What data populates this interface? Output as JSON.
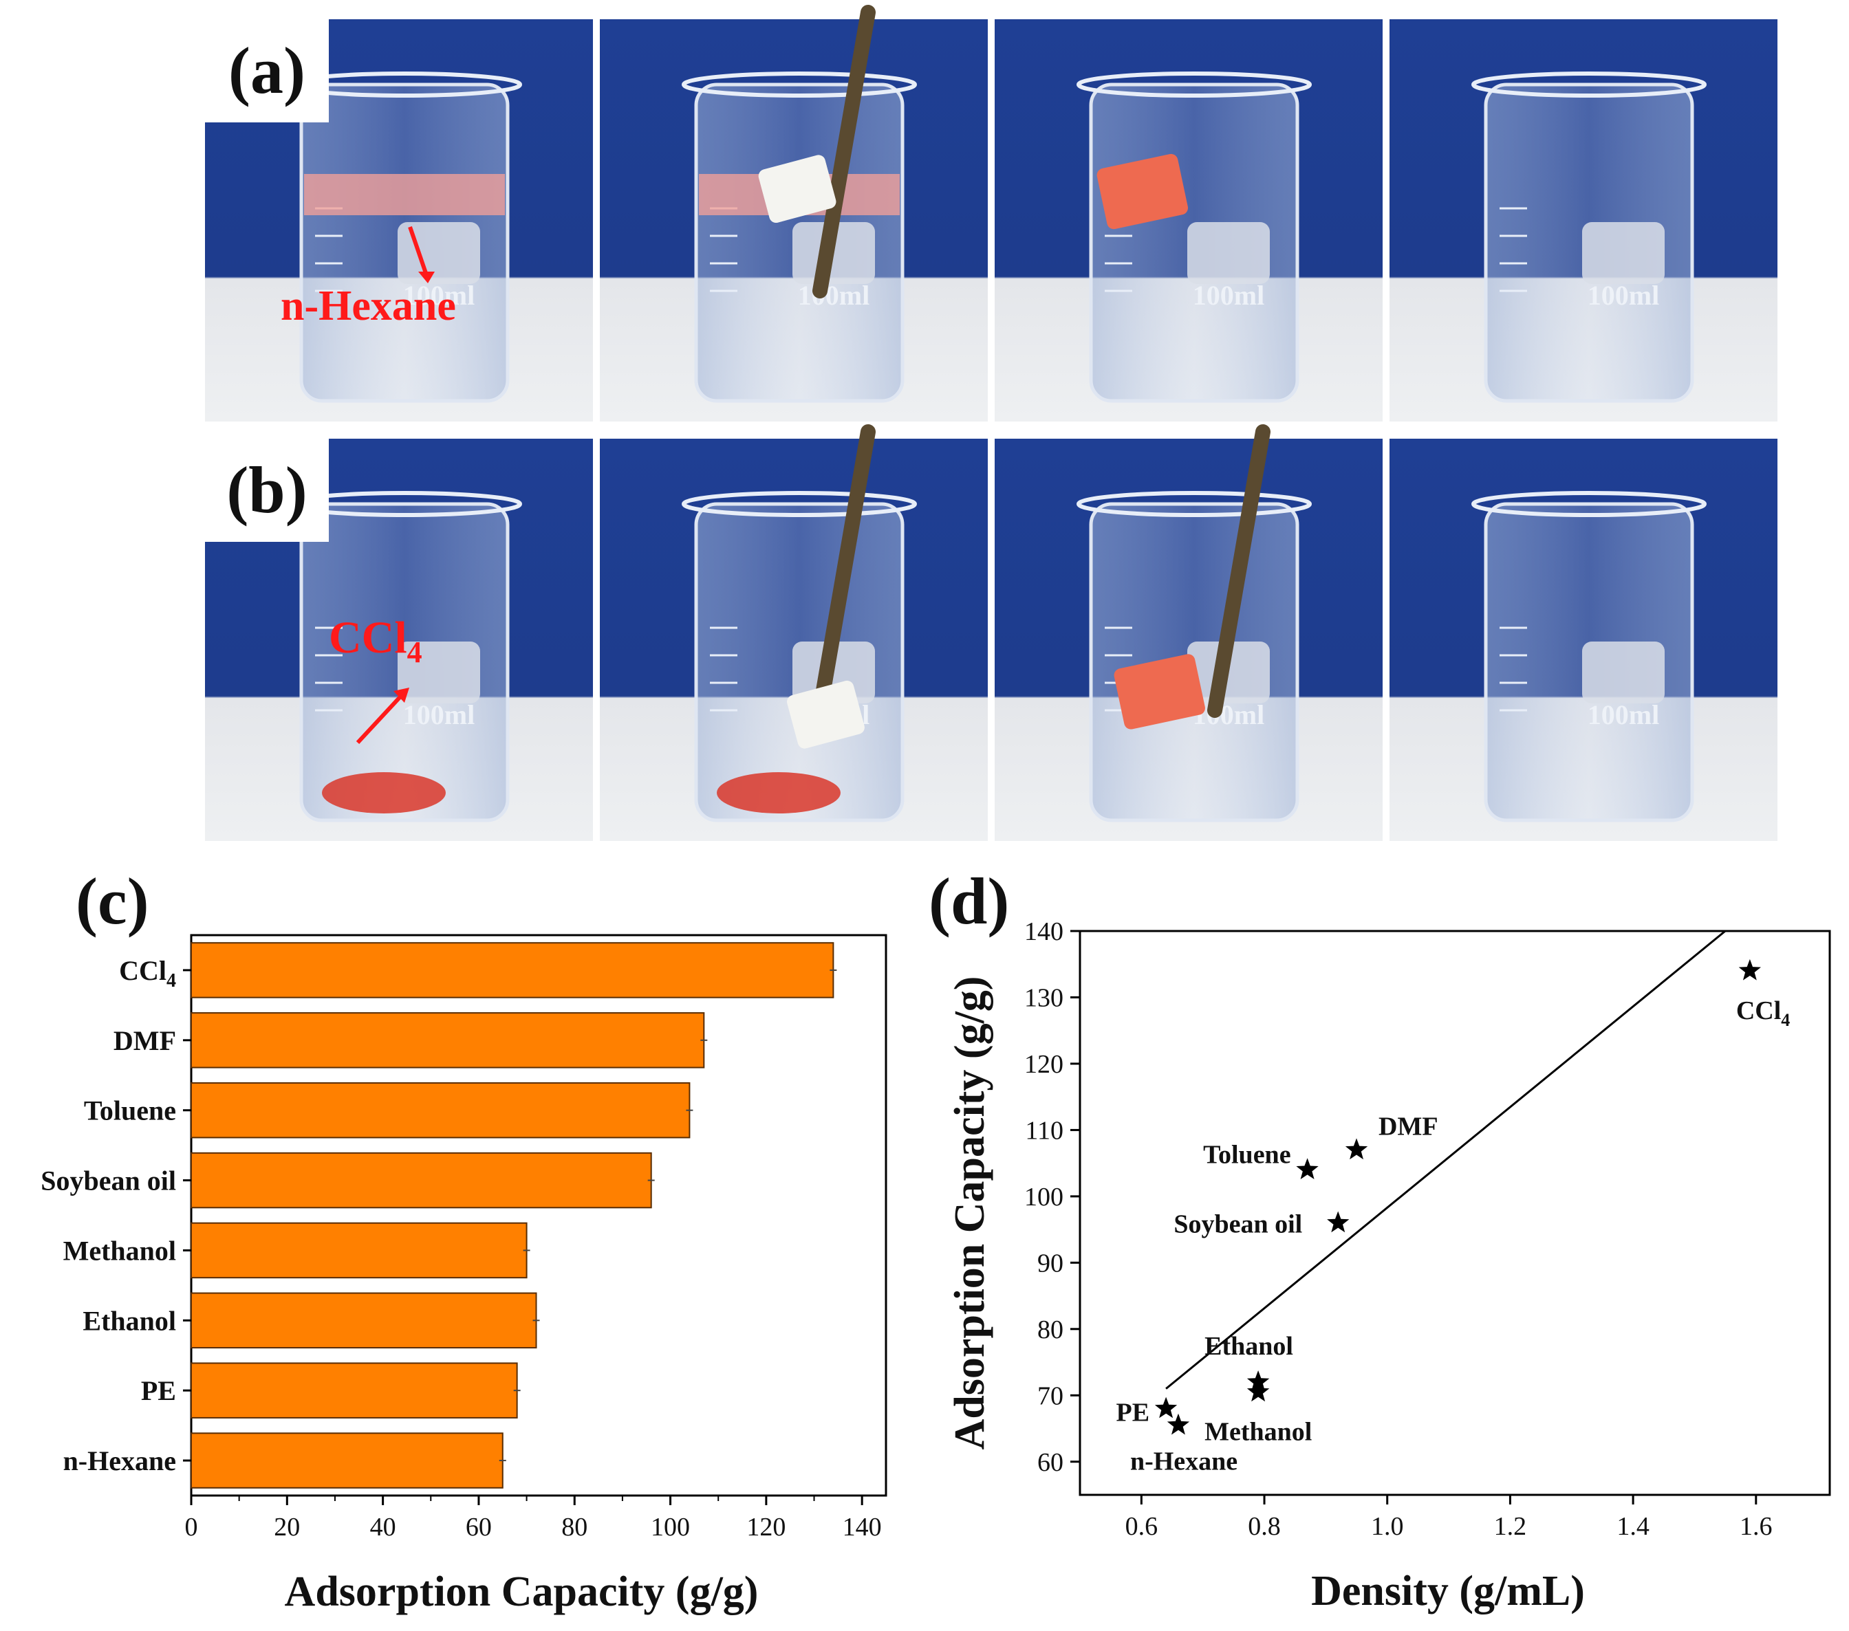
{
  "panels": {
    "a": "(a)",
    "b": "(b)",
    "c": "(c)",
    "d": "(d)"
  },
  "photo_annotations": {
    "a_solvent": "n-Hexane",
    "b_solvent": "CCl",
    "b_solvent_sub": "4",
    "beaker_volume": "100ml"
  },
  "colors": {
    "bar_fill": "#ff8000",
    "bar_stroke": "#5a2d00",
    "annotation_red": "#ff1a1a",
    "backdrop_blue": "#1f3f94"
  },
  "chart_data": [
    {
      "type": "bar",
      "orientation": "horizontal",
      "categories": [
        "CCl4",
        "DMF",
        "Toluene",
        "Soybean oil",
        "Methanol",
        "Ethanol",
        "PE",
        "n-Hexane"
      ],
      "category_labels": [
        {
          "main": "CCl",
          "sub": "4"
        },
        {
          "main": "DMF",
          "sub": ""
        },
        {
          "main": "Toluene",
          "sub": ""
        },
        {
          "main": "Soybean oil",
          "sub": ""
        },
        {
          "main": "Methanol",
          "sub": ""
        },
        {
          "main": "Ethanol",
          "sub": ""
        },
        {
          "main": "PE",
          "sub": ""
        },
        {
          "main": "n-Hexane",
          "sub": ""
        }
      ],
      "values": [
        134,
        107,
        104,
        96,
        70,
        72,
        68,
        65
      ],
      "xlabel": "Adsorption Capacity (g/g)",
      "ylabel": "",
      "xlim": [
        0,
        145
      ],
      "xticks": [
        0,
        20,
        40,
        60,
        80,
        100,
        120,
        140
      ],
      "grid": false
    },
    {
      "type": "scatter",
      "marker": "star",
      "points": [
        {
          "label": "CCl",
          "sub": "4",
          "x": 1.59,
          "y": 134
        },
        {
          "label": "DMF",
          "sub": "",
          "x": 0.95,
          "y": 107
        },
        {
          "label": "Toluene",
          "sub": "",
          "x": 0.87,
          "y": 104
        },
        {
          "label": "Soybean oil",
          "sub": "",
          "x": 0.92,
          "y": 96
        },
        {
          "label": "Ethanol",
          "sub": "",
          "x": 0.79,
          "y": 72
        },
        {
          "label": "Methanol",
          "sub": "",
          "x": 0.79,
          "y": 70.5
        },
        {
          "label": "PE",
          "sub": "",
          "x": 0.64,
          "y": 68
        },
        {
          "label": "n-Hexane",
          "sub": "",
          "x": 0.66,
          "y": 65.5
        }
      ],
      "fit_line": {
        "x": [
          0.64,
          1.55
        ],
        "y": [
          71,
          140
        ]
      },
      "xlabel": "Density (g/mL)",
      "ylabel": "Adsorption Capacity (g/g)",
      "xlim": [
        0.5,
        1.72
      ],
      "ylim": [
        55,
        140
      ],
      "xticks": [
        0.6,
        0.8,
        1.0,
        1.2,
        1.4,
        1.6
      ],
      "yticks": [
        60,
        70,
        80,
        90,
        100,
        110,
        120,
        130,
        140
      ],
      "grid": false
    }
  ]
}
